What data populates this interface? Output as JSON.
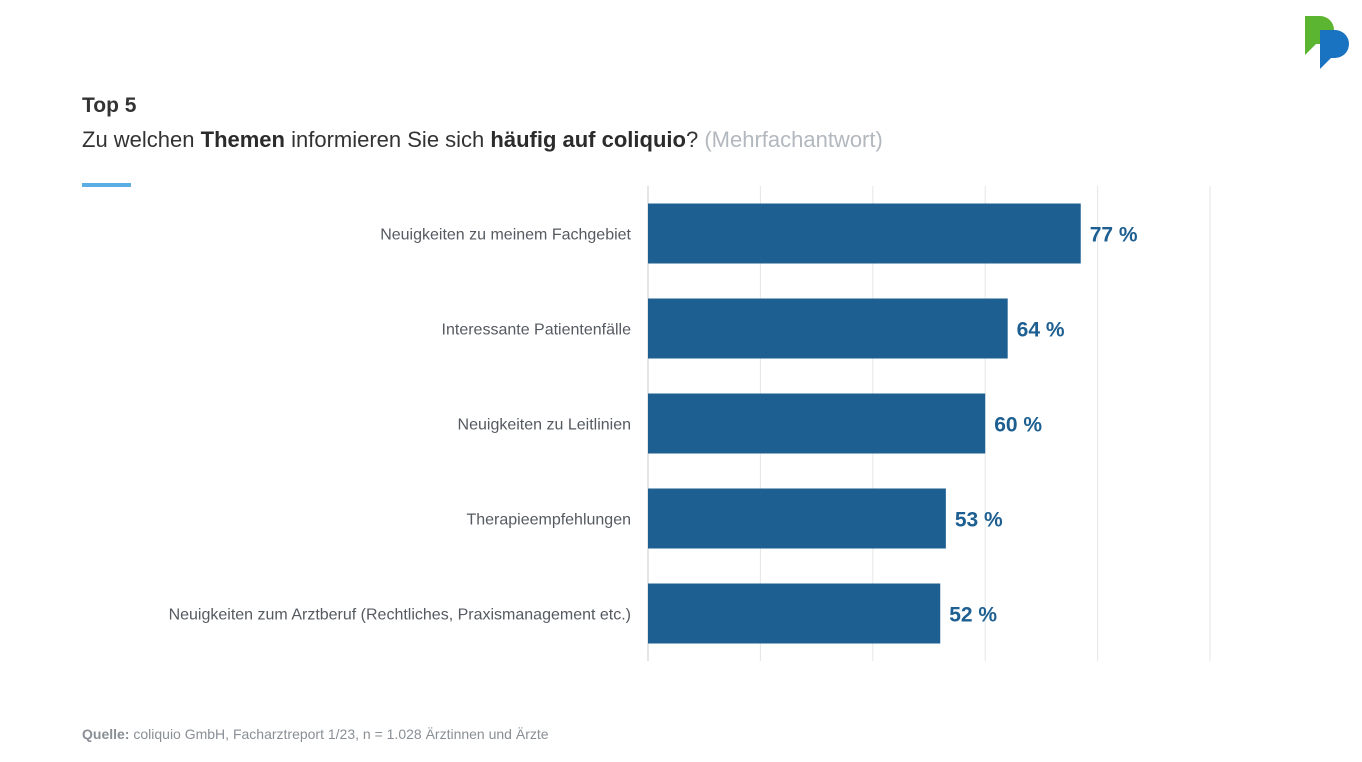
{
  "header": {
    "kicker": "Top 5",
    "question_parts": [
      {
        "text": "Zu welchen ",
        "bold": false
      },
      {
        "text": "Themen",
        "bold": true
      },
      {
        "text": " informieren Sie sich ",
        "bold": false
      },
      {
        "text": "häufig auf coliquio",
        "bold": true
      },
      {
        "text": "?",
        "bold": false
      }
    ],
    "note": " (Mehrfachantwort)"
  },
  "source": {
    "label": "Quelle:",
    "text": " coliquio GmbH, Facharztreport 1/23, n = 1.028 Ärztinnen und Ärzte"
  },
  "colors": {
    "bar": "#1d5f91",
    "value_label": "#1d5f91",
    "accent_rule": "#5aaee3",
    "grid": "#e4e6e8",
    "axis": "#c8cbce",
    "category_label": "#555a60",
    "logo_green": "#5cb531",
    "logo_blue": "#1a73c0"
  },
  "logo": {
    "icon": "coliquio-speech-bubbles-icon"
  },
  "chart_data": {
    "type": "bar",
    "orientation": "horizontal",
    "categories": [
      "Neuigkeiten zu meinem Fachgebiet",
      "Interessante Patientenfälle",
      "Neuigkeiten zu Leitlinien",
      "Therapieempfehlungen",
      "Neuigkeiten zum Arztberuf (Rechtliches, Praxismanagement etc.)"
    ],
    "values": [
      77,
      64,
      60,
      53,
      52
    ],
    "value_labels": [
      "77 %",
      "64 %",
      "60 %",
      "53 %",
      "52 %"
    ],
    "unit": "%",
    "xlim": [
      0,
      100
    ],
    "grid": true,
    "legend": "none"
  }
}
